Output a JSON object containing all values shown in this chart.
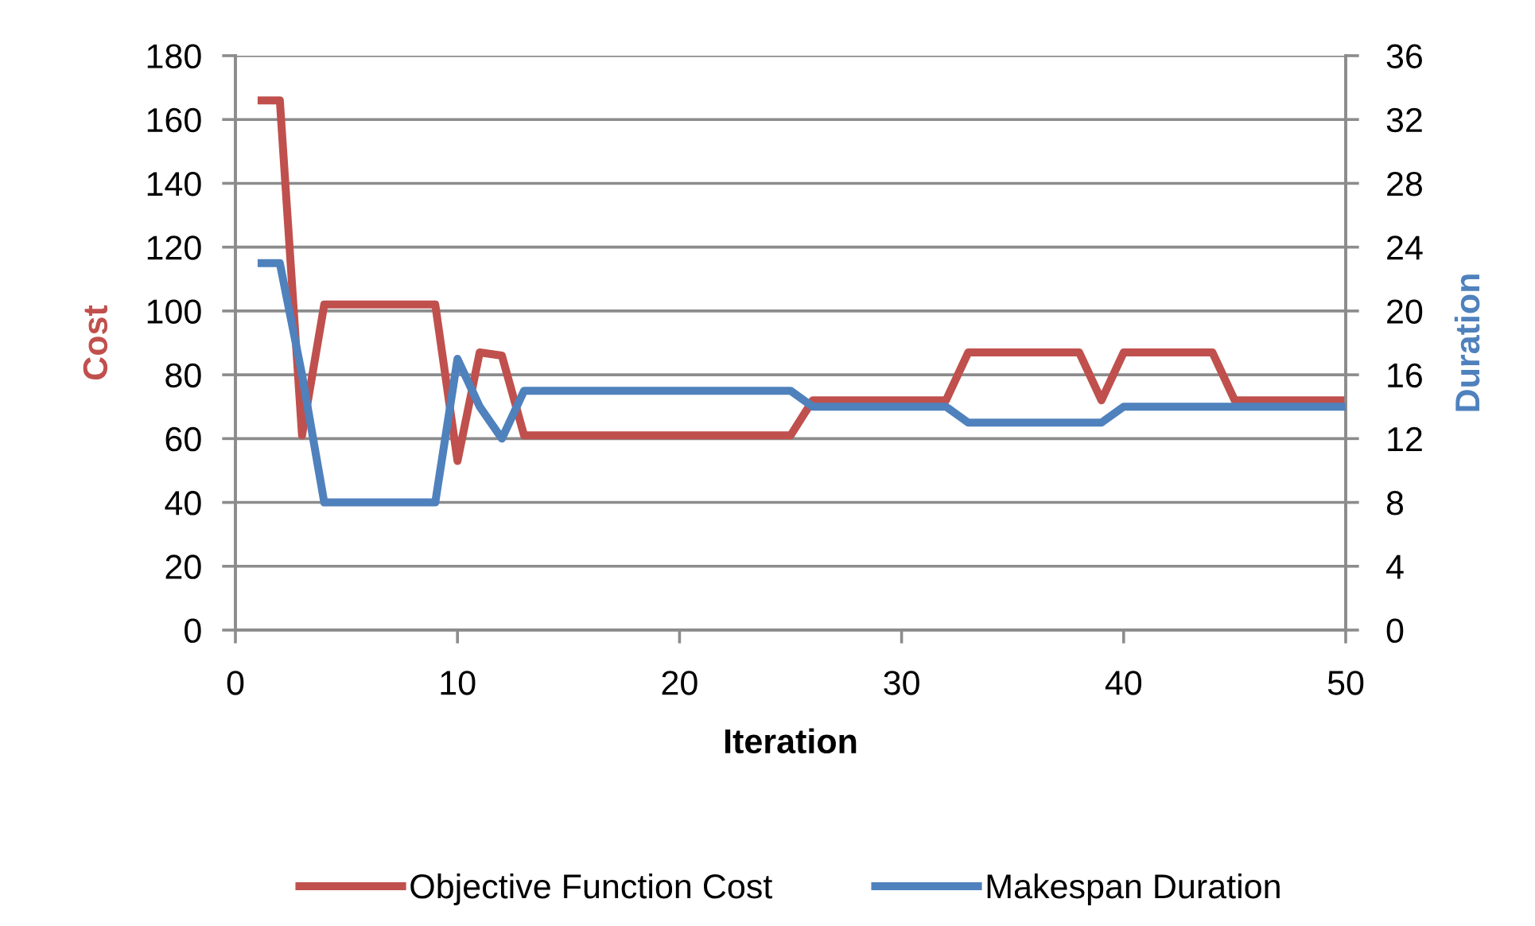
{
  "chart_data": {
    "type": "line",
    "xlabel": "Iteration",
    "ylabel": "Cost",
    "y2label": "Duration",
    "x": [
      1,
      2,
      3,
      4,
      5,
      6,
      7,
      8,
      9,
      10,
      11,
      12,
      13,
      14,
      15,
      16,
      17,
      18,
      19,
      20,
      21,
      22,
      23,
      24,
      25,
      26,
      27,
      28,
      29,
      30,
      31,
      32,
      33,
      34,
      35,
      36,
      37,
      38,
      39,
      40,
      41,
      42,
      43,
      44,
      45,
      46,
      47,
      48,
      49,
      50
    ],
    "series": [
      {
        "name": "Objective Function Cost",
        "color": "#c0504d",
        "values": [
          166,
          166,
          61,
          102,
          102,
          102,
          102,
          102,
          102,
          53,
          87,
          86,
          61,
          61,
          61,
          61,
          61,
          61,
          61,
          61,
          61,
          61,
          61,
          61,
          61,
          72,
          72,
          72,
          72,
          72,
          72,
          72,
          87,
          87,
          87,
          87,
          87,
          87,
          72,
          87,
          87,
          87,
          87,
          87,
          72,
          72,
          72,
          72,
          72,
          72
        ]
      },
      {
        "name": "Makespan Duration",
        "color": "#4f81bd",
        "axis": "y2",
        "values": [
          23,
          23,
          16,
          8,
          8,
          8,
          8,
          8,
          8,
          17,
          14,
          12,
          15,
          15,
          15,
          15,
          15,
          15,
          15,
          15,
          15,
          15,
          15,
          15,
          15,
          14,
          14,
          14,
          14,
          14,
          14,
          14,
          13,
          13,
          13,
          13,
          13,
          13,
          13,
          14,
          14,
          14,
          14,
          14,
          14,
          14,
          14,
          14,
          14,
          14
        ]
      }
    ],
    "xlim": [
      0,
      50
    ],
    "xticks": [
      0,
      10,
      20,
      30,
      40,
      50
    ],
    "ylim": [
      0,
      180
    ],
    "yticks": [
      0,
      20,
      40,
      60,
      80,
      100,
      120,
      140,
      160,
      180
    ],
    "y2lim": [
      0,
      36
    ],
    "y2ticks": [
      0,
      4,
      8,
      12,
      16,
      20,
      24,
      28,
      32,
      36
    ],
    "grid": "y",
    "legend": "bottom",
    "marker": "none",
    "line_style": "solid"
  }
}
